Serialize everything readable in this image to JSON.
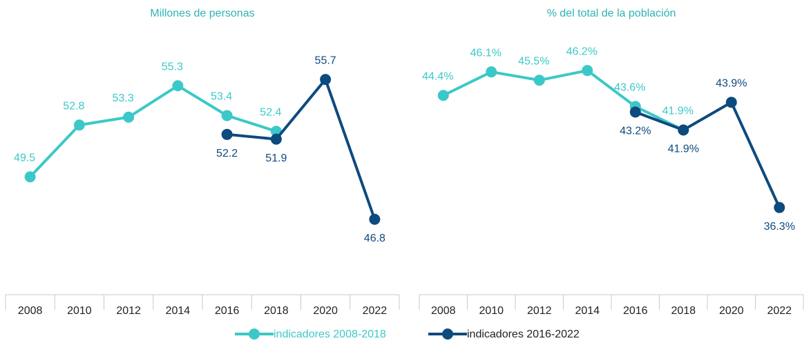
{
  "chart_data": [
    {
      "type": "line",
      "title": "Millones de personas",
      "categories": [
        "2008",
        "2010",
        "2012",
        "2014",
        "2016",
        "2018",
        "2020",
        "2022"
      ],
      "ylim": [
        42,
        59
      ],
      "series": [
        {
          "name": "indicadores 2008-2018",
          "color": "#3cc8c8",
          "values": [
            49.5,
            52.8,
            53.3,
            55.3,
            53.4,
            52.4,
            null,
            null
          ]
        },
        {
          "name": "indicadores 2016-2022",
          "color": "#0d4a7e",
          "values": [
            null,
            null,
            null,
            null,
            52.2,
            51.9,
            55.7,
            46.8
          ]
        }
      ]
    },
    {
      "type": "line",
      "title": "% del total de la población",
      "categories": [
        "2008",
        "2010",
        "2012",
        "2014",
        "2016",
        "2018",
        "2020",
        "2022"
      ],
      "ylim": [
        30,
        49.3
      ],
      "series": [
        {
          "color": "#3cc8c8",
          "values": [
            44.4,
            46.1,
            45.5,
            46.2,
            43.6,
            41.9,
            null,
            null
          ],
          "value_labels": [
            "44.4%",
            "46.1%",
            "45.5%",
            "46.2%",
            "43.6%",
            "41.9%",
            null,
            null
          ]
        },
        {
          "color": "#0d4a7e",
          "values": [
            null,
            null,
            null,
            null,
            43.2,
            41.9,
            43.9,
            36.3
          ],
          "value_labels": [
            null,
            null,
            null,
            null,
            "43.2%",
            "41.9%",
            "43.9%",
            "36.3%"
          ]
        }
      ]
    }
  ]
}
